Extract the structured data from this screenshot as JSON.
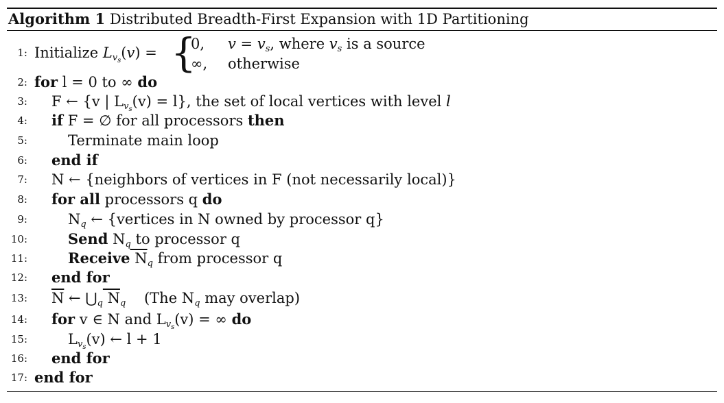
{
  "algorithm": {
    "label": "Algorithm 1",
    "caption": "Distributed Breadth-First Expansion with 1D Partitioning"
  },
  "line1": {
    "num": "1:",
    "text": "Initialize",
    "case1_value": "0,",
    "case1_cond_a": "v",
    "case1_cond_eq": " = ",
    "case1_cond_b": "v",
    "case1_cond_b_sub": "s",
    "case1_cond_rest": ", where ",
    "case1_cond_v": "v",
    "case1_cond_v_sub": "s",
    "case1_cond_tail": " is a source",
    "case2_value": "∞,",
    "case2_cond": "otherwise"
  },
  "lines": [
    {
      "num": "2:",
      "kw1": "for",
      "t1": " l = 0 to ∞ ",
      "kw2": "do"
    },
    {
      "num": "3:",
      "t1": "F ← {v | L",
      "t2": "(v) = l}, the set of local vertices with level ",
      "t3": "l"
    },
    {
      "num": "4:",
      "kw1": "if",
      "t1": " F = ∅ for all processors ",
      "kw2": "then"
    },
    {
      "num": "5:",
      "t1": "Terminate main loop"
    },
    {
      "num": "6:",
      "kw1": "end if"
    },
    {
      "num": "7:",
      "t1": "N ← {neighbors of vertices in F (not necessarily local)}"
    },
    {
      "num": "8:",
      "kw1": "for all",
      "t1": " processors q ",
      "kw2": "do"
    },
    {
      "num": "9:",
      "t1": "N",
      "t1sub": "q",
      "t2": " ← {vertices in N owned by processor q}"
    },
    {
      "num": "10:",
      "kw1": "Send",
      "t1": " N",
      "t1sub": "q",
      "t2": " to processor q"
    },
    {
      "num": "11:",
      "kw1": "Receive",
      "t1": " N",
      "t1sub": "q",
      "t2": " from processor q"
    },
    {
      "num": "12:",
      "kw1": "end for"
    },
    {
      "num": "13:",
      "t1": "N",
      "t2": " ← ⋃",
      "t2sub": "q",
      "t3": " N",
      "t3sub": "q",
      "t4": "    (The N",
      "t4sub": "q",
      "t5": " may overlap)"
    },
    {
      "num": "14:",
      "kw1": "for",
      "t1": " v ∈ N and L",
      "t2": "(v) = ∞ ",
      "kw2": "do"
    },
    {
      "num": "15:",
      "t1": "L",
      "t2": "(v) ← l + 1"
    },
    {
      "num": "16:",
      "kw1": "end for"
    },
    {
      "num": "17:",
      "kw1": "end for"
    }
  ],
  "sub_labels": {
    "v": "v",
    "s": "s"
  }
}
